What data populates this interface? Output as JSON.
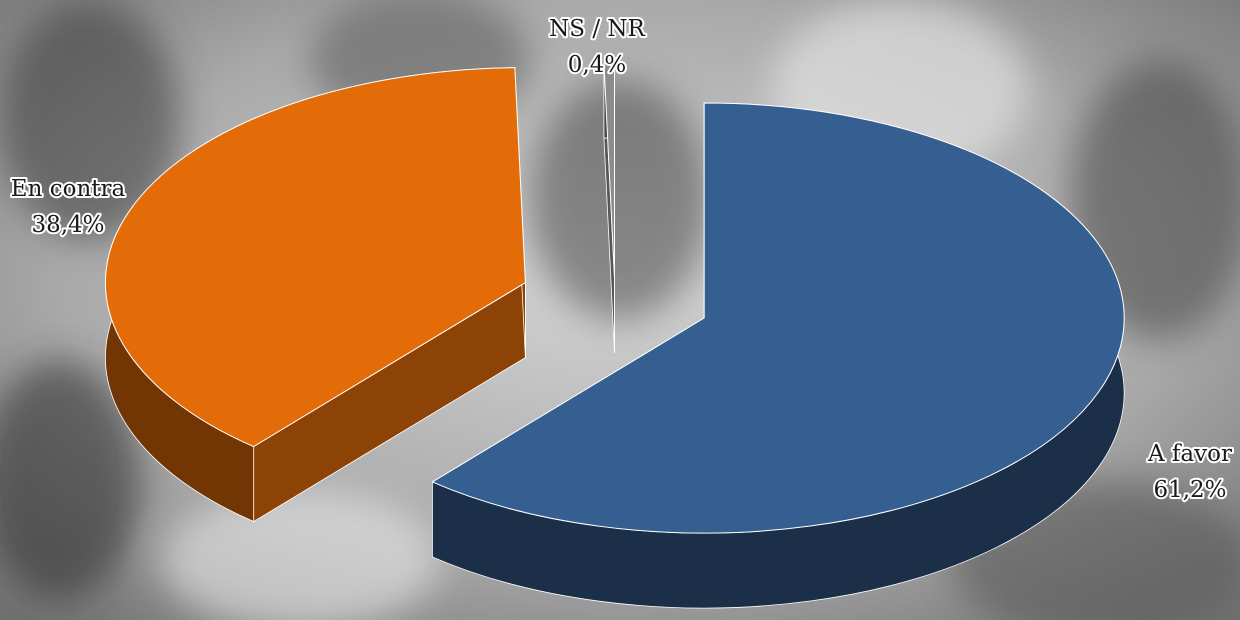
{
  "chart_data": {
    "type": "pie",
    "categories": [
      "A favor",
      "En contra",
      "NS / NR"
    ],
    "values": [
      61.2,
      38.4,
      0.4
    ],
    "value_labels": [
      "61,2%",
      "38,4%",
      "0,4%"
    ],
    "colors": [
      "#355e91",
      "#e36c09",
      "#8c8c8c"
    ]
  }
}
